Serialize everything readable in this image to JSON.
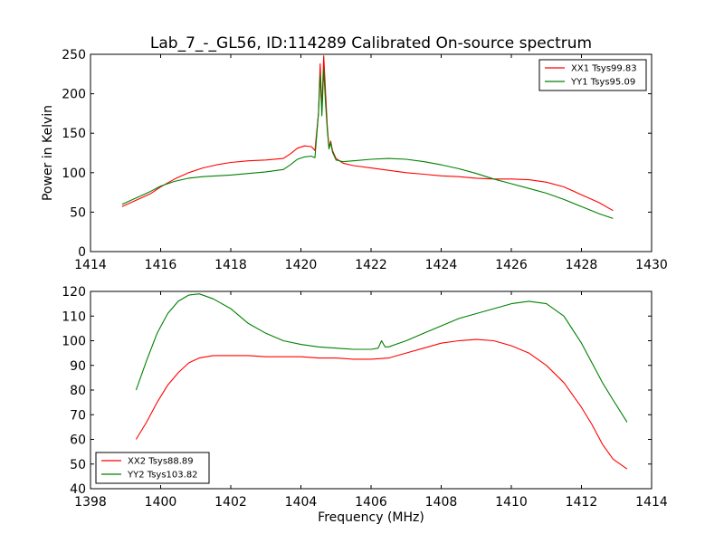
{
  "chart_data": [
    {
      "type": "line",
      "title": "Lab_7_-_GL56, ID:114289 Calibrated On-source spectrum",
      "xlabel": "",
      "ylabel": "Power in Kelvin",
      "xlim": [
        1414,
        1430
      ],
      "ylim": [
        0,
        250
      ],
      "xticks": [
        "1414",
        "1416",
        "1418",
        "1420",
        "1422",
        "1424",
        "1426",
        "1428",
        "1430"
      ],
      "yticks": [
        "0",
        "50",
        "100",
        "150",
        "200",
        "250"
      ],
      "legend_position": "top-right",
      "grid": false,
      "series": [
        {
          "name": "XX1 Tsys99.83",
          "color": "#ff0000",
          "x": [
            1414.9,
            1415.3,
            1415.7,
            1416.0,
            1416.4,
            1416.8,
            1417.2,
            1417.6,
            1418.0,
            1418.5,
            1419.0,
            1419.5,
            1419.7,
            1419.9,
            1420.1,
            1420.3,
            1420.4,
            1420.5,
            1420.55,
            1420.6,
            1420.65,
            1420.7,
            1420.75,
            1420.8,
            1420.85,
            1420.9,
            1421.0,
            1421.2,
            1421.5,
            1422.0,
            1422.5,
            1423.0,
            1423.5,
            1424.0,
            1424.5,
            1425.0,
            1425.5,
            1426.0,
            1426.5,
            1427.0,
            1427.5,
            1428.0,
            1428.5,
            1428.9
          ],
          "y": [
            57,
            65,
            73,
            82,
            92,
            100,
            106,
            110,
            113,
            115,
            116,
            118,
            124,
            131,
            134,
            133,
            128,
            175,
            238,
            180,
            248,
            205,
            160,
            132,
            140,
            128,
            118,
            112,
            109,
            106,
            103,
            100,
            98,
            96,
            95,
            93,
            92,
            92,
            91,
            88,
            82,
            72,
            62,
            52
          ]
        },
        {
          "name": "YY1 Tsys95.09",
          "color": "#008000",
          "x": [
            1414.9,
            1415.3,
            1415.7,
            1416.0,
            1416.4,
            1416.8,
            1417.2,
            1417.6,
            1418.0,
            1418.5,
            1419.0,
            1419.5,
            1419.7,
            1419.9,
            1420.1,
            1420.3,
            1420.4,
            1420.5,
            1420.55,
            1420.6,
            1420.65,
            1420.7,
            1420.75,
            1420.8,
            1420.85,
            1420.9,
            1421.0,
            1421.2,
            1421.5,
            1422.0,
            1422.5,
            1423.0,
            1423.5,
            1424.0,
            1424.5,
            1425.0,
            1425.5,
            1426.0,
            1426.5,
            1427.0,
            1427.5,
            1428.0,
            1428.5,
            1428.9
          ],
          "y": [
            60,
            68,
            76,
            83,
            89,
            93,
            95,
            96,
            97,
            99,
            101,
            104,
            110,
            117,
            120,
            121,
            119,
            175,
            225,
            172,
            232,
            190,
            155,
            130,
            138,
            126,
            116,
            114,
            115,
            117,
            118,
            117,
            114,
            110,
            105,
            99,
            92,
            86,
            80,
            74,
            66,
            57,
            48,
            42
          ]
        }
      ]
    },
    {
      "type": "line",
      "title": "",
      "xlabel": "Frequency (MHz)",
      "ylabel": "",
      "xlim": [
        1398,
        1414
      ],
      "ylim": [
        40,
        120
      ],
      "xticks": [
        "1398",
        "1400",
        "1402",
        "1404",
        "1406",
        "1408",
        "1410",
        "1412",
        "1414"
      ],
      "yticks": [
        "40",
        "50",
        "60",
        "70",
        "80",
        "90",
        "100",
        "110",
        "120"
      ],
      "legend_position": "bottom-left",
      "grid": false,
      "series": [
        {
          "name": "XX2 Tsys88.89",
          "color": "#ff0000",
          "x": [
            1399.3,
            1399.6,
            1399.9,
            1400.2,
            1400.5,
            1400.8,
            1401.1,
            1401.5,
            1402.0,
            1402.5,
            1403.0,
            1403.5,
            1404.0,
            1404.5,
            1405.0,
            1405.5,
            1406.0,
            1406.5,
            1407.0,
            1407.5,
            1408.0,
            1408.5,
            1409.0,
            1409.5,
            1410.0,
            1410.5,
            1411.0,
            1411.5,
            1412.0,
            1412.3,
            1412.6,
            1412.9,
            1413.3
          ],
          "y": [
            60,
            67,
            75,
            82,
            87,
            91,
            93,
            94,
            94,
            94,
            93.5,
            93.5,
            93.5,
            93,
            93,
            92.5,
            92.5,
            93,
            95,
            97,
            99,
            100,
            100.5,
            100,
            98,
            95,
            90,
            83,
            73,
            66,
            58,
            52,
            48
          ]
        },
        {
          "name": "YY2 Tsys103.82",
          "color": "#008000",
          "x": [
            1399.3,
            1399.6,
            1399.9,
            1400.2,
            1400.5,
            1400.8,
            1401.1,
            1401.5,
            1402.0,
            1402.5,
            1403.0,
            1403.5,
            1404.0,
            1404.5,
            1405.0,
            1405.5,
            1406.0,
            1406.2,
            1406.3,
            1406.4,
            1406.5,
            1407.0,
            1407.5,
            1408.0,
            1408.5,
            1409.0,
            1409.5,
            1410.0,
            1410.5,
            1411.0,
            1411.5,
            1412.0,
            1412.3,
            1412.6,
            1412.9,
            1413.3
          ],
          "y": [
            80,
            92,
            103,
            111,
            116,
            118.5,
            119,
            117,
            113,
            107,
            103,
            100,
            98.5,
            97.5,
            97,
            96.5,
            96.5,
            97,
            100,
            97.5,
            97.5,
            100,
            103,
            106,
            109,
            111,
            113,
            115,
            116,
            115,
            110,
            99,
            91,
            83,
            76,
            67
          ]
        }
      ]
    }
  ]
}
